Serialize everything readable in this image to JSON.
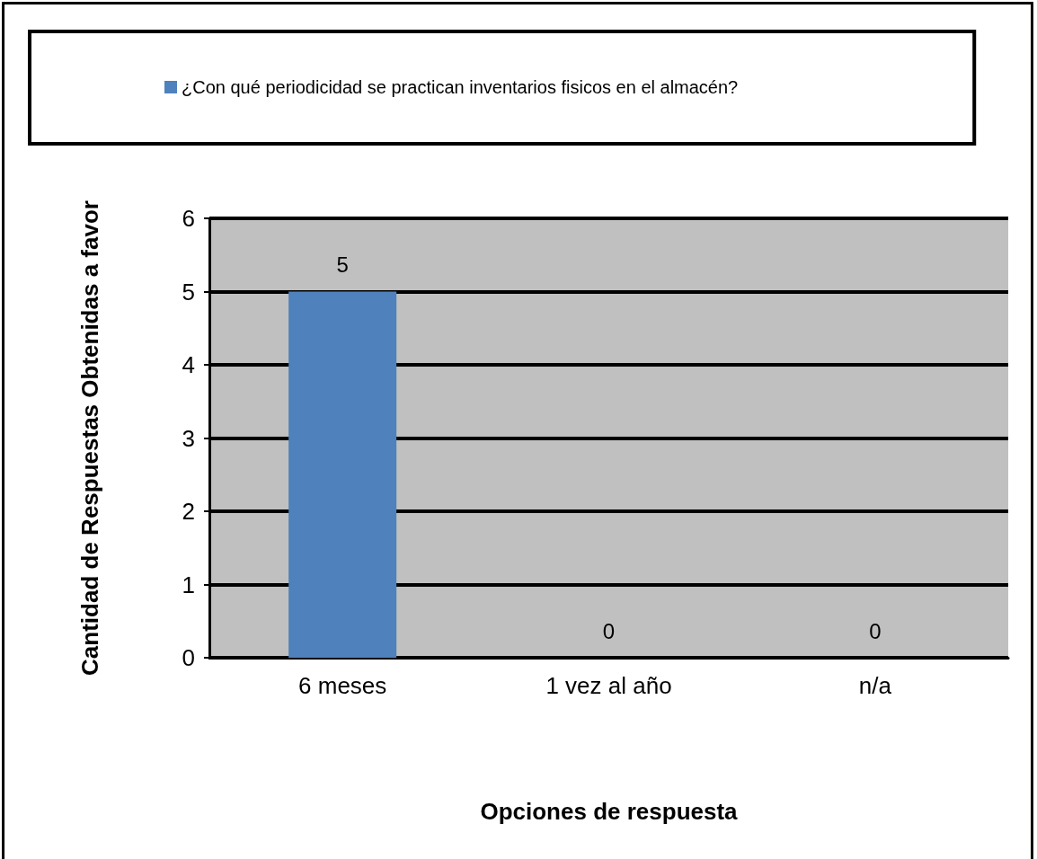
{
  "chart_data": {
    "type": "bar",
    "xlabel": "Opciones de respuesta",
    "ylabel": "Cantidad de Respuestas Obtenidas a favor",
    "categories": [
      "6 meses",
      "1 vez al año",
      "n/a"
    ],
    "series": [
      {
        "name": "¿Con qué periodicidad se practican inventarios fisicos en el almacén?",
        "color": "#4f81bd",
        "values": [
          5,
          0,
          0
        ]
      }
    ],
    "ylim": [
      0,
      6
    ],
    "yticks": [
      0,
      1,
      2,
      3,
      4,
      5,
      6
    ],
    "grid": "y",
    "legend": "top",
    "data_labels": true
  }
}
